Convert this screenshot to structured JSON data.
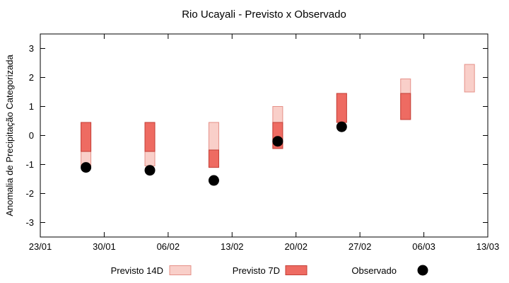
{
  "chart_data": {
    "type": "bar",
    "title": "Rio Ucayali - Previsto x Observado",
    "ylabel": "Anomalia de Precipitação Categorizada",
    "xlabel": "",
    "ylim": [
      -3.5,
      3.5
    ],
    "grid": false,
    "legend_position": "bottom",
    "yticks": [
      -3,
      -2,
      -1,
      0,
      1,
      2,
      3
    ],
    "xticks": [
      {
        "day": 0,
        "label": "23/01"
      },
      {
        "day": 7,
        "label": "30/01"
      },
      {
        "day": 14,
        "label": "06/02"
      },
      {
        "day": 21,
        "label": "13/02"
      },
      {
        "day": 28,
        "label": "20/02"
      },
      {
        "day": 35,
        "label": "27/02"
      },
      {
        "day": 42,
        "label": "06/03"
      },
      {
        "day": 49,
        "label": "13/03"
      }
    ],
    "series": [
      {
        "name": "Previsto 14D",
        "kind": "range-bar",
        "fill": "#f9cfc9",
        "stroke": "#e59088",
        "points": [
          {
            "day": 5,
            "low": -1.05,
            "high": 0.45
          },
          {
            "day": 12,
            "low": -1.05,
            "high": 0.45
          },
          {
            "day": 19,
            "low": -1.1,
            "high": 0.45
          },
          {
            "day": 26,
            "low": -0.45,
            "high": 1.0
          },
          {
            "day": 33,
            "low": 0.45,
            "high": 1.45
          },
          {
            "day": 40,
            "low": 0.55,
            "high": 1.95
          },
          {
            "day": 47,
            "low": 1.5,
            "high": 2.45
          }
        ]
      },
      {
        "name": "Previsto 7D",
        "kind": "range-bar",
        "fill": "#ee6b62",
        "stroke": "#c43f37",
        "points": [
          {
            "day": 5,
            "low": -0.55,
            "high": 0.45
          },
          {
            "day": 12,
            "low": -0.55,
            "high": 0.45
          },
          {
            "day": 19,
            "low": -1.1,
            "high": -0.5
          },
          {
            "day": 26,
            "low": -0.45,
            "high": 0.45
          },
          {
            "day": 33,
            "low": 0.45,
            "high": 1.45
          },
          {
            "day": 40,
            "low": 0.55,
            "high": 1.45
          }
        ]
      },
      {
        "name": "Observado",
        "kind": "dot",
        "fill": "#000000",
        "stroke": "#000000",
        "points": [
          {
            "day": 5,
            "value": -1.1
          },
          {
            "day": 12,
            "value": -1.2
          },
          {
            "day": 19,
            "value": -1.55
          },
          {
            "day": 26,
            "value": -0.2
          },
          {
            "day": 33,
            "value": 0.3
          }
        ]
      }
    ],
    "legend": {
      "items": [
        "Previsto 14D",
        "Previsto 7D",
        "Observado"
      ]
    }
  }
}
